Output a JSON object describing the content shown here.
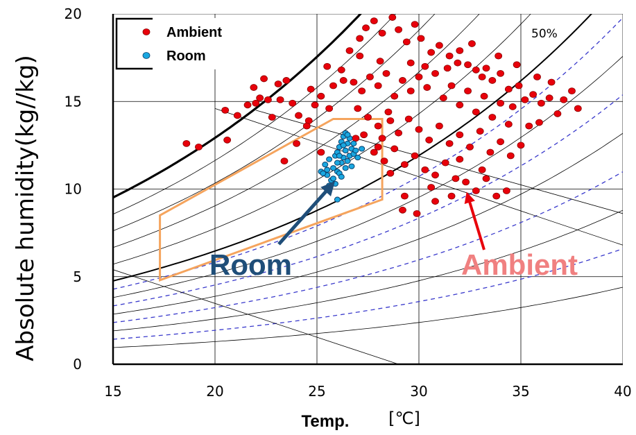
{
  "chart_data": {
    "type": "scatter",
    "ylabel": "Absolute humidity(kg//kg)",
    "xlabel": "Temp.",
    "x_unit": "[℃]",
    "xlim": [
      15,
      40
    ],
    "ylim": [
      0,
      20
    ],
    "x_ticks": [
      15,
      20,
      25,
      30,
      35,
      40
    ],
    "y_ticks": [
      0,
      5,
      10,
      15,
      20
    ],
    "grid": true,
    "legend": {
      "placement": "top-left",
      "entries": [
        {
          "label": "Ambient",
          "color": "#e8000b"
        },
        {
          "label": "Room",
          "color": "#1aa7e0"
        }
      ]
    },
    "rh_curve_label": "50%",
    "comfort_zone": {
      "color": "#f5a45d",
      "vertices": [
        [
          17.3,
          4.8
        ],
        [
          17.3,
          8.5
        ],
        [
          25.8,
          14.0
        ],
        [
          28.2,
          14.0
        ],
        [
          28.2,
          9.4
        ]
      ]
    },
    "series": [
      {
        "name": "Ambient",
        "color": "#e8000b",
        "points": [
          [
            18.6,
            12.6
          ],
          [
            19.2,
            12.4
          ],
          [
            20.6,
            12.8
          ],
          [
            20.5,
            14.5
          ],
          [
            21.1,
            14.2
          ],
          [
            21.6,
            14.8
          ],
          [
            22.0,
            14.9
          ],
          [
            22.2,
            15.2
          ],
          [
            22.6,
            15.1
          ],
          [
            22.8,
            14.1
          ],
          [
            23.1,
            16.0
          ],
          [
            23.5,
            16.2
          ],
          [
            23.2,
            15.1
          ],
          [
            23.8,
            14.9
          ],
          [
            24.1,
            14.2
          ],
          [
            24.6,
            13.9
          ],
          [
            24.9,
            14.8
          ],
          [
            25.2,
            15.3
          ],
          [
            25.6,
            14.6
          ],
          [
            25.8,
            15.9
          ],
          [
            26.2,
            16.8
          ],
          [
            26.6,
            17.9
          ],
          [
            27.1,
            18.6
          ],
          [
            27.4,
            19.2
          ],
          [
            27.8,
            19.6
          ],
          [
            28.2,
            18.9
          ],
          [
            28.7,
            19.8
          ],
          [
            29.0,
            19.1
          ],
          [
            29.4,
            18.4
          ],
          [
            29.8,
            19.4
          ],
          [
            30.1,
            18.6
          ],
          [
            30.6,
            17.8
          ],
          [
            31.0,
            18.2
          ],
          [
            31.5,
            17.6
          ],
          [
            32.0,
            17.9
          ],
          [
            32.4,
            17.1
          ],
          [
            32.8,
            16.8
          ],
          [
            33.3,
            16.9
          ],
          [
            33.6,
            16.2
          ],
          [
            34.0,
            16.6
          ],
          [
            34.4,
            15.7
          ],
          [
            34.9,
            15.9
          ],
          [
            35.2,
            15.1
          ],
          [
            35.6,
            15.4
          ],
          [
            36.0,
            14.9
          ],
          [
            36.4,
            15.2
          ],
          [
            36.8,
            14.3
          ],
          [
            37.1,
            15.1
          ],
          [
            37.5,
            15.6
          ],
          [
            37.8,
            14.6
          ],
          [
            26.8,
            16.1
          ],
          [
            27.2,
            15.6
          ],
          [
            27.6,
            16.4
          ],
          [
            28.0,
            15.9
          ],
          [
            28.4,
            16.6
          ],
          [
            28.8,
            15.3
          ],
          [
            29.2,
            16.2
          ],
          [
            29.6,
            15.6
          ],
          [
            30.0,
            16.4
          ],
          [
            30.4,
            15.8
          ],
          [
            30.8,
            16.6
          ],
          [
            31.2,
            15.2
          ],
          [
            31.6,
            15.9
          ],
          [
            32.0,
            14.8
          ],
          [
            32.4,
            15.6
          ],
          [
            32.8,
            14.4
          ],
          [
            33.2,
            15.3
          ],
          [
            33.6,
            14.1
          ],
          [
            34.0,
            14.9
          ],
          [
            34.4,
            13.7
          ],
          [
            27.0,
            14.6
          ],
          [
            27.5,
            14.1
          ],
          [
            28.0,
            13.6
          ],
          [
            28.5,
            14.4
          ],
          [
            29.0,
            13.2
          ],
          [
            29.5,
            14.0
          ],
          [
            30.0,
            13.4
          ],
          [
            30.5,
            12.8
          ],
          [
            31.0,
            13.6
          ],
          [
            31.5,
            12.6
          ],
          [
            32.0,
            13.1
          ],
          [
            32.5,
            12.4
          ],
          [
            33.0,
            13.3
          ],
          [
            33.5,
            12.1
          ],
          [
            34.0,
            12.7
          ],
          [
            34.5,
            11.9
          ],
          [
            35.0,
            12.5
          ],
          [
            27.8,
            12.1
          ],
          [
            28.3,
            11.6
          ],
          [
            28.8,
            12.3
          ],
          [
            29.3,
            11.4
          ],
          [
            29.8,
            11.9
          ],
          [
            30.3,
            11.1
          ],
          [
            30.8,
            10.8
          ],
          [
            31.3,
            11.5
          ],
          [
            31.8,
            10.6
          ],
          [
            32.3,
            10.4
          ],
          [
            32.8,
            9.9
          ],
          [
            33.3,
            10.6
          ],
          [
            33.8,
            9.6
          ],
          [
            34.3,
            9.9
          ],
          [
            29.2,
            8.8
          ],
          [
            29.9,
            8.6
          ],
          [
            30.8,
            9.3
          ],
          [
            31.6,
            9.6
          ],
          [
            28.2,
            12.9
          ],
          [
            28.6,
            13.9
          ],
          [
            27.3,
            13.1
          ],
          [
            26.9,
            12.9
          ],
          [
            28.0,
            12.4
          ],
          [
            24.0,
            12.6
          ],
          [
            23.4,
            11.6
          ],
          [
            24.5,
            13.6
          ],
          [
            25.2,
            12.1
          ],
          [
            31.9,
            17.2
          ],
          [
            32.6,
            18.3
          ],
          [
            33.9,
            17.6
          ],
          [
            34.8,
            17.1
          ],
          [
            35.8,
            16.4
          ],
          [
            36.5,
            16.1
          ],
          [
            29.6,
            17.2
          ],
          [
            30.3,
            17.0
          ],
          [
            31.4,
            16.9
          ],
          [
            33.1,
            16.4
          ],
          [
            28.1,
            17.3
          ],
          [
            27.1,
            17.6
          ],
          [
            26.3,
            16.2
          ],
          [
            25.5,
            17.0
          ],
          [
            24.7,
            15.7
          ],
          [
            22.4,
            16.3
          ],
          [
            21.9,
            15.8
          ],
          [
            35.4,
            13.6
          ],
          [
            34.6,
            14.7
          ],
          [
            35.9,
            13.8
          ],
          [
            33.1,
            11.1
          ],
          [
            32.0,
            11.7
          ],
          [
            30.6,
            10.1
          ],
          [
            29.3,
            9.6
          ],
          [
            28.6,
            10.9
          ]
        ]
      },
      {
        "name": "Room",
        "color": "#1aa7e0",
        "points": [
          [
            25.2,
            11.0
          ],
          [
            25.4,
            11.4
          ],
          [
            25.5,
            10.8
          ],
          [
            25.6,
            11.7
          ],
          [
            25.7,
            10.5
          ],
          [
            25.8,
            11.2
          ],
          [
            25.9,
            11.9
          ],
          [
            25.9,
            10.3
          ],
          [
            26.0,
            12.1
          ],
          [
            26.0,
            11.0
          ],
          [
            26.1,
            12.4
          ],
          [
            26.1,
            10.9
          ],
          [
            26.2,
            12.7
          ],
          [
            26.2,
            11.5
          ],
          [
            26.3,
            13.0
          ],
          [
            26.3,
            11.8
          ],
          [
            26.4,
            13.2
          ],
          [
            26.4,
            12.2
          ],
          [
            26.5,
            12.6
          ],
          [
            26.5,
            11.6
          ],
          [
            26.6,
            12.9
          ],
          [
            26.6,
            11.9
          ],
          [
            26.7,
            12.3
          ],
          [
            26.8,
            12.0
          ],
          [
            26.8,
            12.6
          ],
          [
            26.9,
            12.2
          ],
          [
            27.0,
            11.8
          ],
          [
            25.6,
            10.2
          ],
          [
            25.8,
            10.6
          ],
          [
            26.0,
            11.5
          ],
          [
            26.2,
            10.7
          ],
          [
            26.4,
            11.2
          ],
          [
            26.7,
            11.3
          ],
          [
            26.0,
            9.4
          ],
          [
            25.5,
            11.1
          ],
          [
            26.1,
            11.9
          ],
          [
            26.3,
            12.5
          ],
          [
            26.5,
            13.1
          ],
          [
            27.2,
            12.3
          ],
          [
            25.3,
            10.9
          ]
        ]
      }
    ],
    "annotations": [
      {
        "text": "Room",
        "color": "#1f4e79",
        "arrow_to": [
          25.7,
          10.2
        ]
      },
      {
        "text": "Ambient",
        "color": "#f08080",
        "arrow_to": [
          32.4,
          9.6
        ]
      }
    ]
  }
}
